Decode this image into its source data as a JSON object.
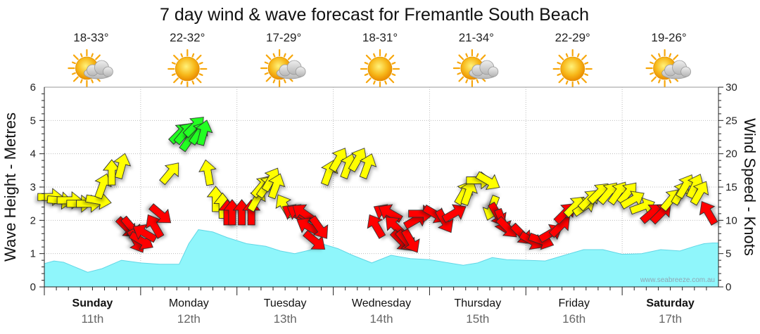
{
  "chart_data": {
    "type": "area",
    "title": "7 day wind & wave forecast for Fremantle South Beach",
    "ylabel_left": "Wave Height - Metres",
    "ylabel_right": "Wind Speed - Knots",
    "ylim_left": [
      0,
      6
    ],
    "ylim_right": [
      0,
      30
    ],
    "yticks_left": [
      "0",
      "1",
      "2",
      "3",
      "4",
      "5",
      "6"
    ],
    "yticks_right": [
      "0",
      "5",
      "10",
      "15",
      "20",
      "25",
      "30"
    ],
    "grid": true,
    "watermark": "www.seabreeze.com.au",
    "colors": {
      "wave_fill": "#8ff6fb",
      "wave_edge": "#62d7e6",
      "wind_light": "#ff0000",
      "wind_moderate": "#ffff00",
      "wind_strong": "#22ff22",
      "sun": "#f7a70c",
      "cloud": "#c9c9c9"
    },
    "days": [
      {
        "name": "Sunday",
        "date": "11th",
        "temp": "18-33°",
        "icon": "sun-cloud-icon",
        "bold": true
      },
      {
        "name": "Monday",
        "date": "12th",
        "temp": "22-32°",
        "icon": "sun-icon",
        "bold": false
      },
      {
        "name": "Tuesday",
        "date": "13th",
        "temp": "17-29°",
        "icon": "sun-cloud-icon",
        "bold": false
      },
      {
        "name": "Wednesday",
        "date": "14th",
        "temp": "18-31°",
        "icon": "sun-icon",
        "bold": false
      },
      {
        "name": "Thursday",
        "date": "15th",
        "temp": "21-34°",
        "icon": "sun-cloud-icon",
        "bold": false
      },
      {
        "name": "Friday",
        "date": "16th",
        "temp": "22-29°",
        "icon": "sun-icon",
        "bold": false
      },
      {
        "name": "Saturday",
        "date": "17th",
        "temp": "19-26°",
        "icon": "sun-cloud-icon",
        "bold": true
      }
    ],
    "wave_height_series": {
      "name": "Wave Height (m)",
      "x_days": [
        0,
        0.1,
        0.2,
        0.3,
        0.45,
        0.6,
        0.8,
        1.0,
        1.2,
        1.4,
        1.5,
        1.6,
        1.75,
        1.9,
        2.1,
        2.3,
        2.45,
        2.6,
        2.75,
        2.9,
        3.05,
        3.2,
        3.4,
        3.6,
        3.8,
        4.0,
        4.2,
        4.35,
        4.5,
        4.65,
        4.8,
        5.0,
        5.2,
        5.4,
        5.6,
        5.8,
        6.0,
        6.2,
        6.4,
        6.6,
        6.75,
        6.85,
        6.94
      ],
      "values": [
        0.7,
        0.78,
        0.74,
        0.62,
        0.44,
        0.55,
        0.8,
        0.72,
        0.68,
        0.68,
        1.3,
        1.72,
        1.65,
        1.48,
        1.3,
        1.22,
        1.08,
        1.0,
        1.1,
        1.28,
        1.15,
        0.95,
        0.72,
        0.95,
        0.85,
        0.82,
        0.72,
        0.65,
        0.72,
        0.88,
        0.82,
        0.8,
        0.78,
        0.95,
        1.12,
        1.12,
        0.98,
        1.0,
        1.12,
        1.08,
        1.22,
        1.3,
        1.32
      ]
    },
    "wind_series": {
      "name": "Wind Speed (knots) / Direction (degrees, arrow points where wind blows to)",
      "x_days": [
        0.05,
        0.15,
        0.25,
        0.35,
        0.45,
        0.55,
        0.6,
        0.7,
        0.8,
        0.85,
        0.9,
        0.95,
        1.0,
        1.05,
        1.15,
        1.2,
        1.3,
        1.4,
        1.45,
        1.5,
        1.55,
        1.6,
        1.65,
        1.7,
        1.78,
        1.85,
        1.9,
        1.95,
        2.05,
        2.15,
        2.2,
        2.25,
        2.3,
        2.35,
        2.4,
        2.5,
        2.6,
        2.65,
        2.7,
        2.75,
        2.8,
        2.85,
        2.95,
        3.05,
        3.15,
        3.25,
        3.35,
        3.45,
        3.55,
        3.6,
        3.65,
        3.7,
        3.75,
        3.8,
        3.85,
        3.9,
        4.05,
        4.15,
        4.25,
        4.35,
        4.4,
        4.5,
        4.6,
        4.65,
        4.7,
        4.75,
        4.8,
        4.95,
        5.05,
        5.15,
        5.25,
        5.35,
        5.4,
        5.5,
        5.6,
        5.65,
        5.75,
        5.85,
        5.95,
        6.05,
        6.1,
        6.2,
        6.3,
        6.4,
        6.5,
        6.6,
        6.65,
        6.75,
        6.8,
        6.9
      ],
      "speeds": [
        13.5,
        13,
        13,
        12.5,
        12.5,
        13,
        15,
        17,
        18,
        9,
        9,
        7,
        7,
        8,
        9,
        11,
        17,
        23,
        23,
        22,
        24,
        23,
        23,
        17,
        13,
        12,
        11,
        11,
        11,
        11,
        13,
        15,
        15,
        16,
        15,
        12,
        11,
        11,
        11,
        9,
        7,
        9,
        17,
        19,
        18,
        19,
        18,
        9,
        11,
        11,
        9,
        7,
        7,
        7,
        10,
        11,
        11,
        10,
        11,
        14,
        14,
        16,
        16,
        12,
        11,
        10,
        9,
        8,
        7,
        7,
        8,
        9,
        11,
        12,
        12,
        13,
        14,
        14,
        14,
        14,
        13,
        12,
        11,
        11,
        13,
        14,
        15,
        15,
        14,
        11
      ],
      "directions_deg": [
        90,
        95,
        90,
        90,
        90,
        100,
        20,
        0,
        15,
        135,
        140,
        150,
        120,
        300,
        330,
        130,
        40,
        45,
        40,
        35,
        45,
        35,
        15,
        350,
        0,
        0,
        0,
        0,
        0,
        0,
        30,
        40,
        35,
        30,
        20,
        330,
        300,
        300,
        305,
        300,
        130,
        145,
        20,
        30,
        20,
        30,
        20,
        330,
        300,
        300,
        315,
        135,
        140,
        150,
        60,
        90,
        120,
        150,
        60,
        30,
        20,
        90,
        120,
        200,
        150,
        160,
        135,
        135,
        120,
        110,
        60,
        45,
        45,
        45,
        55,
        45,
        45,
        40,
        35,
        40,
        60,
        70,
        50,
        45,
        40,
        30,
        30,
        25,
        30,
        330
      ]
    }
  }
}
